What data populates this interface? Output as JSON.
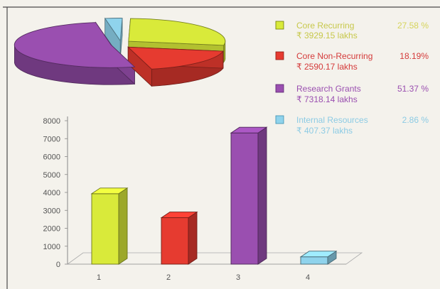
{
  "chart_data": [
    {
      "type": "pie",
      "legend_position": "right",
      "slices": [
        {
          "label": "Core Recurring",
          "amount": "₹ 3929.15 lakhs",
          "percent_label": "27.58 %",
          "value": 27.58,
          "color": "#d9ea3a"
        },
        {
          "label": "Core Non-Recurring",
          "amount": "₹ 2590.17 lakhs",
          "percent_label": "18.19%",
          "value": 18.19,
          "color": "#e63b30"
        },
        {
          "label": "Research Grants",
          "amount": "₹ 7318.14 lakhs",
          "percent_label": "51.37 %",
          "value": 51.37,
          "color": "#9a4fb0"
        },
        {
          "label": "Internal Resources",
          "amount": "₹ 407.37 lakhs",
          "percent_label": "2.86 %",
          "value": 2.86,
          "color": "#8fd3ec"
        }
      ]
    },
    {
      "type": "bar",
      "categories": [
        "1",
        "2",
        "3",
        "4"
      ],
      "values": [
        3929.15,
        2590.17,
        7318.14,
        407.37
      ],
      "colors": [
        "#d9ea3a",
        "#e63b30",
        "#9a4fb0",
        "#8fd3ec"
      ],
      "yticks": [
        "0",
        "1000",
        "2000",
        "3000",
        "4000",
        "5000",
        "6000",
        "7000",
        "8000"
      ],
      "ylim": [
        0,
        8000
      ],
      "grid": false
    }
  ]
}
